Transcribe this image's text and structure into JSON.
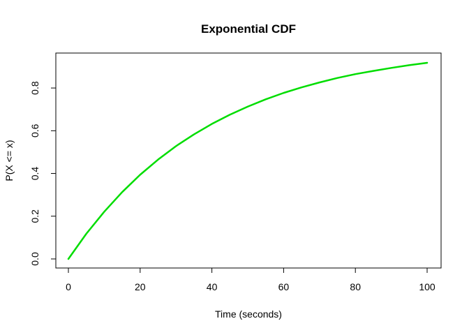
{
  "chart_data": {
    "type": "line",
    "title": "Exponential CDF",
    "xlabel": "Time (seconds)",
    "ylabel": "P(X <= x)",
    "xlim": [
      0,
      100
    ],
    "ylim": [
      0,
      0.9179
    ],
    "x_ticks": [
      0,
      20,
      40,
      60,
      80,
      100
    ],
    "y_ticks": [
      0.0,
      0.2,
      0.4,
      0.6,
      0.8
    ],
    "x_tick_labels": [
      "0",
      "20",
      "40",
      "60",
      "80",
      "100"
    ],
    "y_tick_labels": [
      "0.0",
      "0.2",
      "0.4",
      "0.6",
      "0.8"
    ],
    "grid": false,
    "line_color": "#00dd00",
    "series": [
      {
        "x": [
          0,
          5,
          10,
          15,
          20,
          25,
          30,
          35,
          40,
          45,
          50,
          55,
          60,
          65,
          70,
          75,
          80,
          85,
          90,
          95,
          100
        ],
        "values": [
          0.0,
          0.118,
          0.221,
          0.313,
          0.394,
          0.465,
          0.528,
          0.583,
          0.632,
          0.675,
          0.713,
          0.747,
          0.777,
          0.803,
          0.826,
          0.847,
          0.865,
          0.88,
          0.894,
          0.907,
          0.918
        ]
      }
    ]
  }
}
